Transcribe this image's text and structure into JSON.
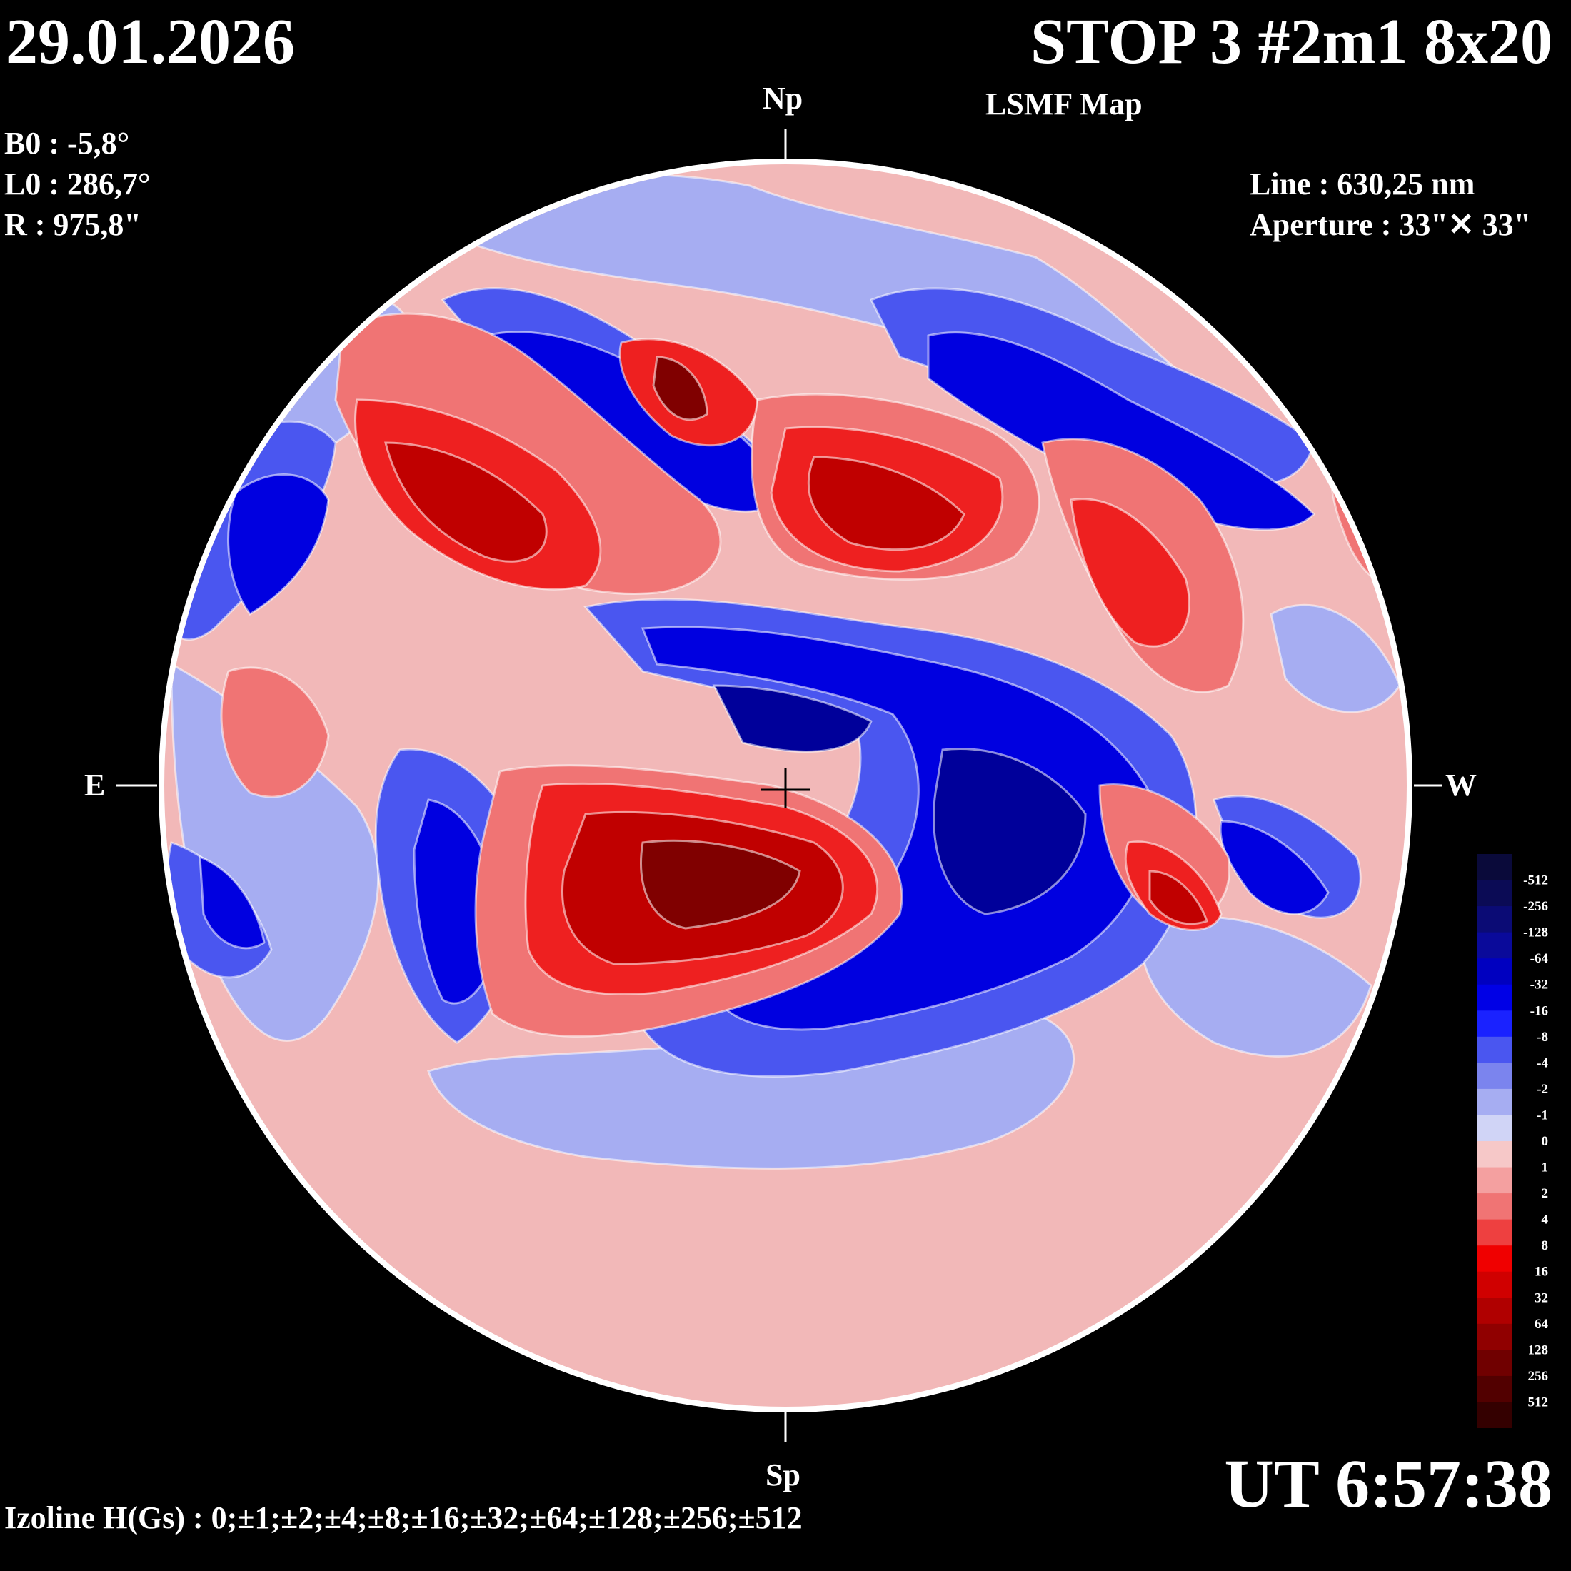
{
  "header": {
    "date": "29.01.2026",
    "title": "STOP 3 #2m1 8x20",
    "subtitle": "LSMF  Map"
  },
  "params": {
    "b0": "B0 : -5,8°",
    "l0": "L0 : 286,7°",
    "r": "R  : 975,8\""
  },
  "instrument": {
    "line": "Line :  630,25 nm",
    "aperture": "Aperture : 33\"✕ 33\""
  },
  "compass": {
    "north": "Np",
    "south": "Sp",
    "east": "E",
    "west": "W"
  },
  "ut": "UT 6:57:38",
  "izoline": "Izoline H(Gs) : 0;±1;±2;±4;±8;±16;±32;±64;±128;±256;±512",
  "legend": {
    "labels": [
      "-512",
      "-256",
      "-128",
      "-64",
      "-32",
      "-16",
      "-8",
      "-4",
      "-2",
      "-1",
      "0",
      "1",
      "2",
      "4",
      "8",
      "16",
      "32",
      "64",
      "128",
      "256",
      "512"
    ],
    "colors": [
      "#0a0a3a",
      "#0b0b55",
      "#0b0b75",
      "#0a0a9a",
      "#0000c0",
      "#0000e6",
      "#1a22ff",
      "#4a56f0",
      "#7b84ee",
      "#a6adf2",
      "#d0d4f6",
      "#f6c8c8",
      "#f4a0a0",
      "#f07474",
      "#ee4040",
      "#f00000",
      "#d00000",
      "#b00000",
      "#900000",
      "#700000",
      "#520000",
      "#340000"
    ]
  },
  "map_colors": {
    "disk_bg": "#f2b8b8",
    "neg_weak": "#a6adf2",
    "neg_mid": "#4a56f0",
    "neg_strong": "#0000e0",
    "neg_core": "#00009a",
    "pos_weak": "#f07474",
    "pos_mid": "#ee2020",
    "pos_strong": "#c00000",
    "pos_core": "#800000"
  }
}
